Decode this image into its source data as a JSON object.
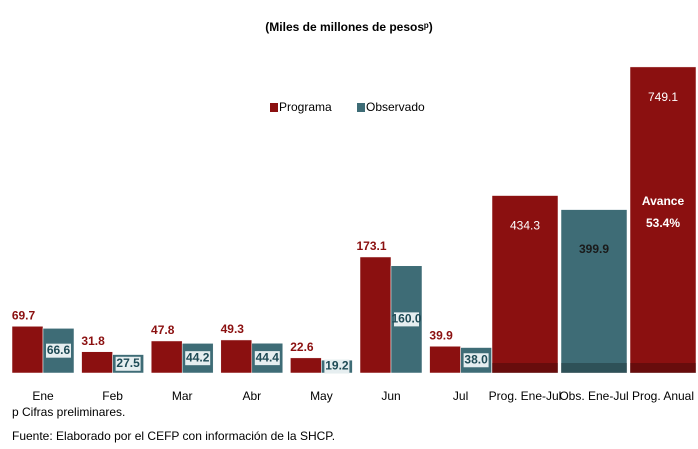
{
  "title": "(Miles de millones de pesosᵖ)",
  "chart_data": [
    {
      "type": "bar",
      "categories": [
        "Ene",
        "Feb",
        "Mar",
        "Abr",
        "May",
        "Jun",
        "Jul"
      ],
      "series": [
        {
          "name": "Programa",
          "color": "#8b1010",
          "values": [
            69.7,
            31.8,
            47.8,
            49.3,
            22.6,
            173.1,
            39.9
          ]
        },
        {
          "name": "Observado",
          "color": "#3e6c76",
          "values": [
            66.6,
            27.5,
            44.2,
            44.4,
            19.2,
            160.0,
            38.0
          ],
          "value_labels": [
            "66.6",
            "27.5",
            "44.2",
            "44.4",
            "19.2",
            "160.0",
            "38.0"
          ]
        }
      ],
      "ylim": [
        0,
        467
      ]
    },
    {
      "type": "bar",
      "categories": [
        "Prog. Ene-Jul",
        "Obs. Ene-Jul",
        "Prog. Anual"
      ],
      "values": [
        434.3,
        399.9,
        749.1
      ],
      "colors": [
        "#8b1010",
        "#3e6c76",
        "#8b1010"
      ],
      "annotation": [
        "Avance",
        "53.4%"
      ],
      "ylim": [
        0,
        766
      ]
    }
  ],
  "footnotes": [
    "p Cifras preliminares.",
    "Fuente: Elaborado por el CEFP con información de la SHCP."
  ]
}
